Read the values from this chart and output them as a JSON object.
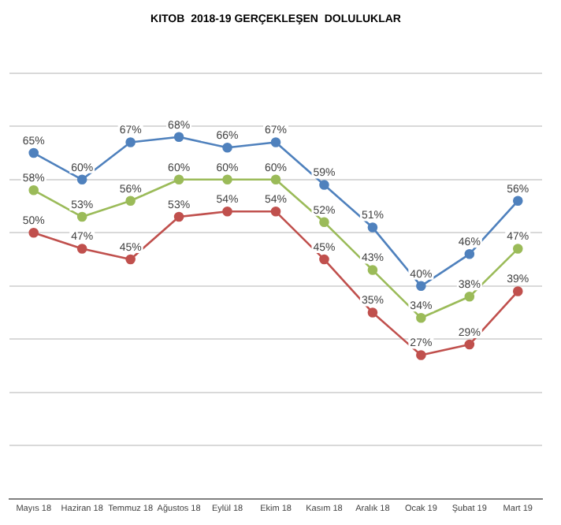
{
  "chart_data": {
    "type": "line",
    "title": "KITOB  2018-19 GERÇEKLEŞEN  DOLULUKLAR",
    "categories": [
      "Mayıs 18",
      "Haziran 18",
      "Temmuz 18",
      "Ağustos 18",
      "Eylül 18",
      "Ekim 18",
      "Kasım 18",
      "Aralık 18",
      "Ocak 19",
      "Şubat 19",
      "Mart 19"
    ],
    "series": [
      {
        "color": "#4f81bd",
        "values": [
          65,
          60,
          67,
          68,
          66,
          67,
          59,
          51,
          40,
          46,
          56
        ],
        "value_labels": [
          "65%",
          "60%",
          "67%",
          "68%",
          "66%",
          "67%",
          "59%",
          "51%",
          "40%",
          "46%",
          "56%"
        ]
      },
      {
        "color": "#9bbb59",
        "values": [
          58,
          53,
          56,
          60,
          60,
          60,
          52,
          43,
          34,
          38,
          47
        ],
        "value_labels": [
          "58%",
          "53%",
          "56%",
          "60%",
          "60%",
          "60%",
          "52%",
          "43%",
          "34%",
          "38%",
          "47%"
        ]
      },
      {
        "color": "#c0504d",
        "values": [
          50,
          47,
          45,
          53,
          54,
          54,
          45,
          35,
          27,
          29,
          39
        ],
        "value_labels": [
          "50%",
          "47%",
          "45%",
          "53%",
          "54%",
          "54%",
          "45%",
          "35%",
          "27%",
          "29%",
          "39%"
        ]
      }
    ],
    "ylim": [
      0,
      80
    ],
    "yticks": [
      {
        "value": 0,
        "label": null
      },
      {
        "value": 10,
        "label": null
      },
      {
        "value": 20,
        "label": null
      },
      {
        "value": 30,
        "label": null
      },
      {
        "value": 40,
        "label": null
      },
      {
        "value": 50,
        "label": null
      },
      {
        "value": 60,
        "label": null
      },
      {
        "value": 70,
        "label": null
      },
      {
        "value": 80,
        "label": null
      }
    ],
    "tick_labels": "x",
    "grid": "y",
    "marker": "circle",
    "line_style": "solid",
    "legend": false
  }
}
